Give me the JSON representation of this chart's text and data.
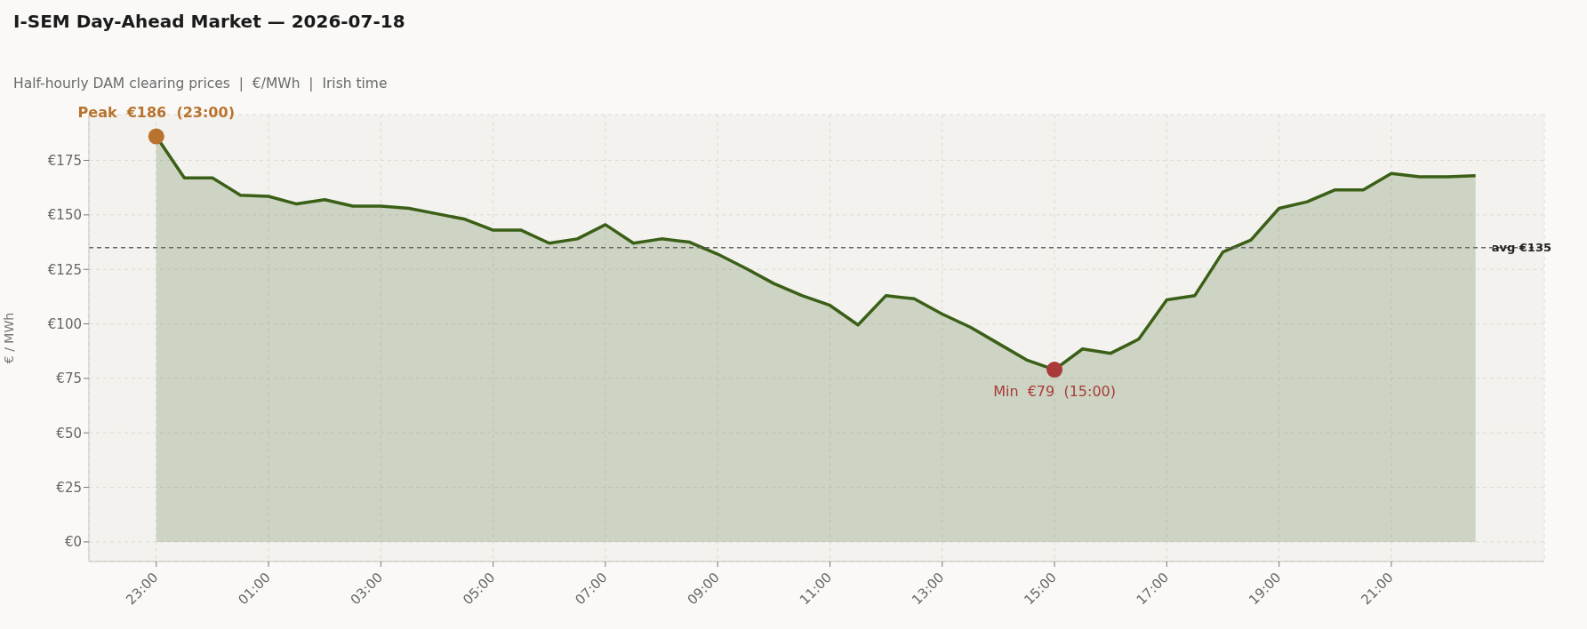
{
  "chart_data": {
    "type": "area",
    "title": "I-SEM Day-Ahead Market — 2026-07-18",
    "subtitle": "Half-hourly DAM clearing prices  |  €/MWh  |  Irish time",
    "ylabel": "€ / MWh",
    "categories": [
      "23:00",
      null,
      null,
      null,
      "01:00",
      null,
      null,
      null,
      "03:00",
      null,
      null,
      null,
      "05:00",
      null,
      null,
      null,
      "07:00",
      null,
      null,
      null,
      "09:00",
      null,
      null,
      null,
      "11:00",
      null,
      null,
      null,
      "13:00",
      null,
      null,
      null,
      "15:00",
      null,
      null,
      null,
      "17:00",
      null,
      null,
      null,
      "19:00",
      null,
      null,
      null,
      "21:00",
      null,
      null,
      null
    ],
    "series": [
      {
        "color": "#3a5f17",
        "marker": "none",
        "values": [
          186,
          167,
          167,
          159,
          158.5,
          155,
          157,
          154,
          154,
          153,
          150.5,
          148,
          143,
          143,
          137,
          139,
          145.5,
          137,
          139,
          137.5,
          132,
          125.5,
          118.5,
          113,
          108.5,
          99.5,
          113,
          111.5,
          104.5,
          98.5,
          91,
          83.5,
          79,
          88.5,
          86.5,
          93,
          111,
          113,
          133,
          138.5,
          153,
          156,
          161.5,
          161.5,
          169,
          167.5,
          167.5,
          168
        ]
      },
      {
        "type": "scatter",
        "color": "#b8732e",
        "marker": "circle",
        "x": [
          "23:00"
        ],
        "values": [
          186
        ]
      },
      {
        "type": "scatter",
        "color": "#a83a3a",
        "marker": "circle",
        "x": [
          "15:00"
        ],
        "values": [
          79
        ]
      }
    ],
    "annotations": [
      {
        "text": "Peak  €186  (23:00)",
        "x": "23:00",
        "y": 186
      },
      {
        "text": "Min  €79  (15:00)",
        "x": "15:00",
        "y": 79
      }
    ],
    "ref_lines": [
      {
        "axis": "y",
        "value": 135,
        "label": "avg €135",
        "color": "#666666",
        "line_style": "dashed"
      }
    ],
    "ylim": [
      -9,
      196
    ],
    "yticks": [
      {
        "value": 0,
        "label": "€0"
      },
      {
        "value": 25,
        "label": "€25"
      },
      {
        "value": 50,
        "label": "€50"
      },
      {
        "value": 75,
        "label": "€75"
      },
      {
        "value": 100,
        "label": "€100"
      },
      {
        "value": 125,
        "label": "€125"
      },
      {
        "value": 150,
        "label": "€150"
      },
      {
        "value": 175,
        "label": "€175"
      }
    ],
    "grid": true
  }
}
